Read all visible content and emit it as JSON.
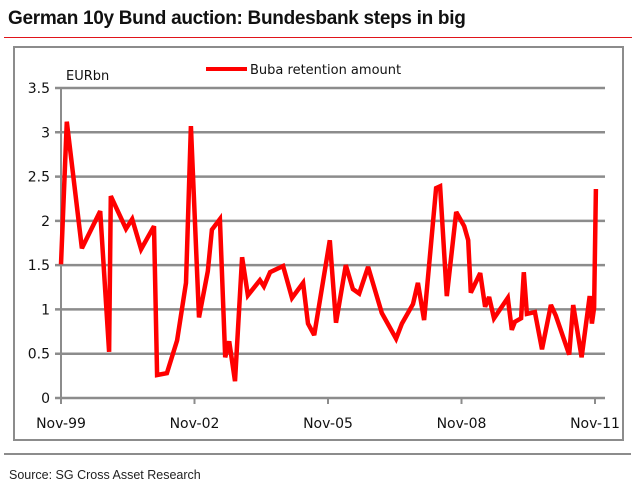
{
  "header": {
    "title": "German 10y Bund auction: Bundesbank steps in big"
  },
  "footer": {
    "source": "Source: SG Cross Asset Research"
  },
  "colors": {
    "series": "#ff0000",
    "grid": "#8c8c8c",
    "title_rule": "#e0141a"
  },
  "chart_data": {
    "type": "line",
    "title": "German 10y Bund auction: Bundesbank steps in big",
    "ylabel": "EURbn",
    "xlabel": "",
    "ylim": [
      0,
      3.5
    ],
    "yticks": [
      0,
      0.5,
      1,
      1.5,
      2,
      2.5,
      3,
      3.5
    ],
    "ytick_labels": [
      "0",
      "0.5",
      "1",
      "1.5",
      "2",
      "2.5",
      "3",
      "3.5"
    ],
    "xlim_years_since_nov99": [
      0,
      12
    ],
    "xticks_years_since_nov99": [
      0,
      3,
      6,
      9,
      12
    ],
    "xtick_labels": [
      "Nov-99",
      "Nov-02",
      "Nov-05",
      "Nov-08",
      "Nov-11"
    ],
    "grid": "horizontal",
    "legend": {
      "position": "top-center",
      "entries": [
        "Buba retention amount"
      ]
    },
    "series": [
      {
        "name": "Buba retention amount",
        "x_years_since_nov99": [
          0.0,
          0.13,
          0.47,
          0.88,
          1.08,
          1.12,
          1.46,
          1.6,
          1.8,
          2.09,
          2.16,
          2.38,
          2.61,
          2.81,
          2.92,
          3.1,
          3.3,
          3.39,
          3.57,
          3.69,
          3.78,
          3.91,
          4.07,
          4.2,
          4.47,
          4.56,
          4.7,
          4.99,
          5.19,
          5.44,
          5.55,
          5.69,
          6.04,
          6.18,
          6.4,
          6.56,
          6.7,
          6.9,
          7.21,
          7.53,
          7.66,
          7.91,
          8.02,
          8.16,
          8.43,
          8.52,
          8.67,
          8.88,
          9.06,
          9.15,
          9.21,
          9.42,
          9.53,
          9.62,
          9.73,
          10.04,
          10.13,
          10.2,
          10.34,
          10.4,
          10.47,
          10.65,
          10.81,
          11.01,
          11.12,
          11.42,
          11.51,
          11.7,
          11.88,
          11.93,
          11.98,
          12.02
        ],
        "values": [
          1.51,
          3.12,
          1.69,
          2.11,
          0.52,
          2.28,
          1.91,
          2.02,
          1.68,
          1.94,
          0.26,
          0.28,
          0.65,
          1.3,
          3.07,
          0.91,
          1.43,
          1.9,
          2.02,
          0.46,
          0.64,
          0.19,
          1.59,
          1.16,
          1.33,
          1.26,
          1.42,
          1.49,
          1.13,
          1.3,
          0.84,
          0.71,
          1.78,
          0.85,
          1.5,
          1.23,
          1.18,
          1.48,
          0.96,
          0.67,
          0.84,
          1.06,
          1.3,
          0.88,
          2.37,
          2.39,
          1.15,
          2.1,
          1.94,
          1.78,
          1.19,
          1.41,
          1.03,
          1.14,
          0.9,
          1.13,
          0.77,
          0.86,
          0.9,
          1.42,
          0.95,
          0.97,
          0.55,
          1.05,
          0.93,
          0.49,
          1.05,
          0.46,
          1.15,
          0.84,
          1.02,
          2.36
        ]
      }
    ]
  }
}
